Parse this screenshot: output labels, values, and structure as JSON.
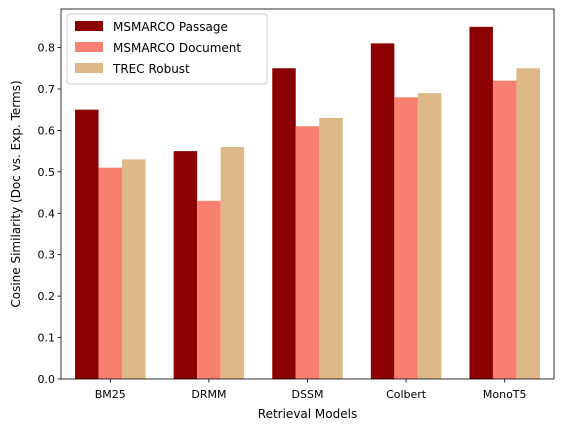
{
  "chart_data": {
    "type": "bar",
    "title": "",
    "xlabel": "Retrieval Models",
    "ylabel": "Cosine Similarity (Doc vs. Exp. Terms)",
    "categories": [
      "BM25",
      "DRMM",
      "DSSM",
      "Colbert",
      "MonoT5"
    ],
    "series": [
      {
        "name": "MSMARCO Passage",
        "values": [
          0.65,
          0.55,
          0.75,
          0.81,
          0.85
        ],
        "color": "#8b0000"
      },
      {
        "name": "MSMARCO Document",
        "values": [
          0.51,
          0.43,
          0.61,
          0.68,
          0.72
        ],
        "color": "#fa8072"
      },
      {
        "name": "TREC Robust",
        "values": [
          0.53,
          0.56,
          0.63,
          0.69,
          0.75
        ],
        "color": "#deb887"
      }
    ],
    "ylim": [
      0,
      0.893
    ],
    "yticks": [
      "0.0",
      "0.1",
      "0.2",
      "0.3",
      "0.4",
      "0.5",
      "0.6",
      "0.7",
      "0.8"
    ],
    "grid": false,
    "legend_position": "top-left"
  }
}
